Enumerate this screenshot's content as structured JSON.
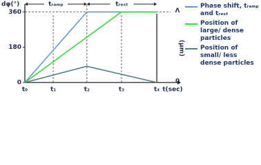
{
  "chart_data": {
    "type": "line",
    "y_label": "dφ(°)",
    "x_label": "t(sec)",
    "y2_label": "(µm)",
    "annotations": [
      "tᵣₐₘₚ",
      "tᵣₑₛₜ"
    ],
    "xlim": [
      0,
      4.5
    ],
    "xticks": [
      {
        "value": 0,
        "label": "t₀"
      },
      {
        "value": 0.86,
        "label": "t₁"
      },
      {
        "value": 1.88,
        "label": "t₂"
      },
      {
        "value": 2.93,
        "label": "t₃"
      },
      {
        "value": 4,
        "label": "t₄"
      }
    ],
    "ylim": [
      0,
      400
    ],
    "yticks": [
      0,
      180,
      360
    ],
    "y2lim": [
      0,
      1.11
    ],
    "y2ticks": [
      0,
      {
        "value": 1,
        "label": "Λ"
      }
    ],
    "series": [
      {
        "name": "Phase shift, tᵣₐₘₚ and tᵣₑₛₜ",
        "color": "#5b9bd5",
        "x": [
          0,
          1.88,
          4
        ],
        "values": [
          0,
          360,
          360
        ]
      },
      {
        "name": "Position of large/ dense particles",
        "color": "#33dd33",
        "axis": "y2",
        "x": [
          0,
          2.93,
          4
        ],
        "values": [
          0,
          1,
          1
        ]
      },
      {
        "name": "Position of small/ less dense particles",
        "color": "#4f7f80",
        "axis": "y2",
        "x": [
          0,
          1.88,
          4
        ],
        "values": [
          0,
          0.23,
          0
        ]
      }
    ]
  }
}
